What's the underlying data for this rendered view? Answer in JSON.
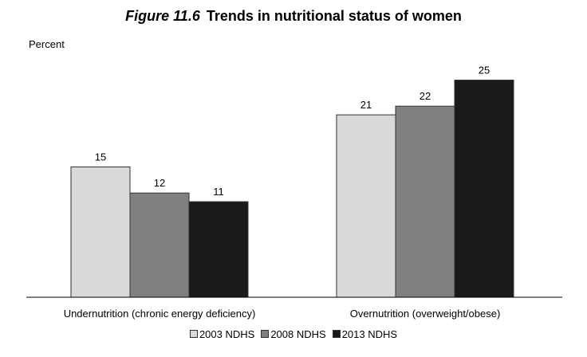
{
  "title": {
    "figure_label": "Figure 11.6",
    "text": "Trends in nutritional status of women"
  },
  "chart_data": {
    "type": "bar",
    "ylabel": "Percent",
    "xlabel": "",
    "categories": [
      "Undernutrition (chronic energy deficiency)",
      "Overnutrition (overweight/obese)"
    ],
    "series": [
      {
        "name": "2003 NDHS",
        "values": [
          15,
          21
        ],
        "color": "#d9d9d9"
      },
      {
        "name": "2008 NDHS",
        "values": [
          12,
          22
        ],
        "color": "#808080"
      },
      {
        "name": "2013 NDHS",
        "values": [
          11,
          25
        ],
        "color": "#1a1a1a"
      }
    ],
    "ylim": [
      0,
      30
    ],
    "grid": false,
    "legend_position": "bottom"
  }
}
